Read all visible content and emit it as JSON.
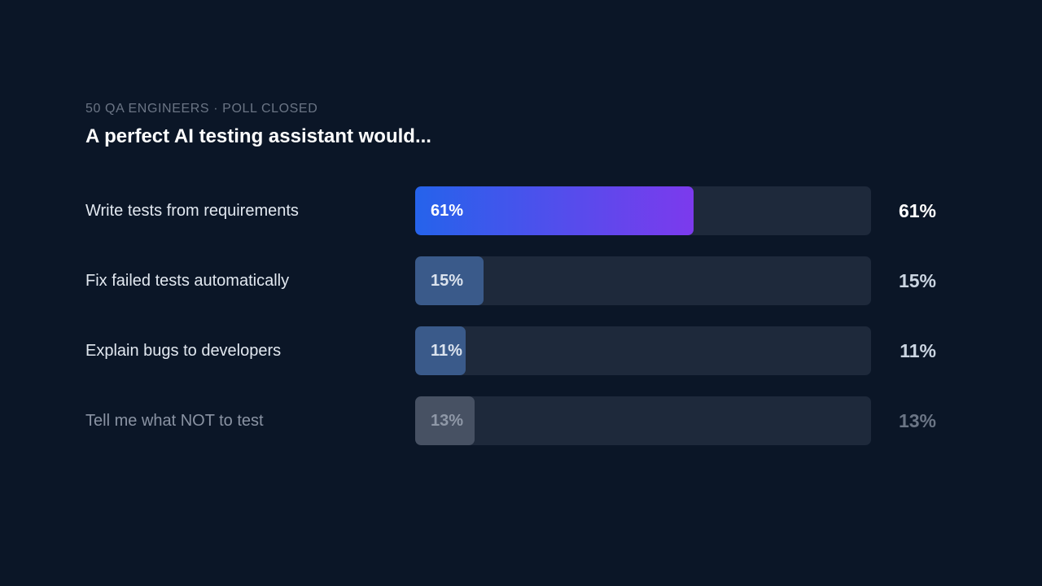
{
  "header": {
    "eyebrow": "50 QA ENGINEERS · POLL CLOSED",
    "title": "A perfect AI testing assistant would..."
  },
  "colors": {
    "background": "#0b1627",
    "track": "#1e293b",
    "leader_gradient": [
      "#2563eb",
      "#7c3aed"
    ],
    "secondary_fill": "#3a5a8a",
    "muted_fill": "#475163"
  },
  "chart_data": {
    "type": "bar",
    "orientation": "horizontal",
    "title": "A perfect AI testing assistant would...",
    "subtitle": "50 QA ENGINEERS · POLL CLOSED",
    "categories": [
      "Write tests from requirements",
      "Fix failed tests automatically",
      "Explain bugs to developers",
      "Tell me what NOT to test"
    ],
    "values": [
      61,
      15,
      11,
      13
    ],
    "value_labels": [
      "61%",
      "15%",
      "11%",
      "13%"
    ],
    "xlim": [
      0,
      100
    ],
    "unit": "%",
    "grid": false
  }
}
